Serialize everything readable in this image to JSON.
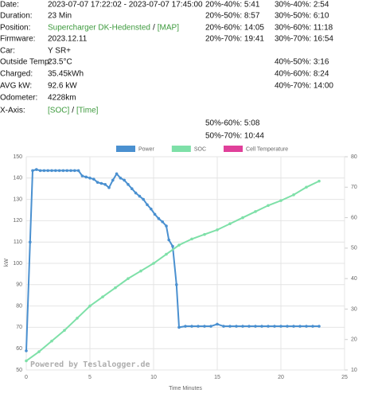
{
  "info": {
    "rows": [
      {
        "label": "Date:",
        "value": "2023-07-07 17:22:02 - 2023-07-07 17:45:00"
      },
      {
        "label": "Duration:",
        "value": "23 Min"
      },
      {
        "label": "Position:",
        "links": [
          "Supercharger DK-Hedensted",
          "[MAP]"
        ],
        "separator": "/"
      },
      {
        "label": "Firmware:",
        "value": "2023.12.11"
      },
      {
        "label": "Car:",
        "value": "Y SR+"
      },
      {
        "label": "Outside Temp:",
        "value": "23.5°C"
      },
      {
        "label": "Charged:",
        "value": "35.45kWh"
      },
      {
        "label": "AVG kW:",
        "value": "92.6 kW"
      },
      {
        "label": "Odometer:",
        "value": "4228km"
      },
      {
        "label": "X-Axis:",
        "links": [
          "[SOC]",
          "[Time]"
        ],
        "separator": "/"
      }
    ]
  },
  "stats": {
    "col_20": [
      "20%-40%: 5:41",
      "20%-50%: 8:57",
      "20%-60%: 14:05",
      "20%-70%: 19:41"
    ],
    "col_30": [
      "30%-40%: 2:54",
      "30%-50%: 6:10",
      "30%-60%: 11:18",
      "30%-70%: 16:54"
    ],
    "col_40": [
      "40%-50%: 3:16",
      "40%-60%: 8:24",
      "40%-70%: 14:00"
    ],
    "col_50": [
      "50%-60%: 5:08",
      "50%-70%: 10:44"
    ]
  },
  "chart_data": {
    "type": "line",
    "x_label": "Time Minutes",
    "y_label": "kW",
    "watermark": "Powered by Teslalogger.de",
    "xlim": [
      0,
      25
    ],
    "xticks": [
      0,
      5,
      10,
      15,
      20,
      25
    ],
    "ylim": [
      50,
      150
    ],
    "yticks": [
      50,
      60,
      70,
      80,
      90,
      100,
      110,
      120,
      130,
      140,
      150
    ],
    "y2lim": [
      10,
      80
    ],
    "y2ticks": [
      10,
      20,
      30,
      40,
      50,
      60,
      70,
      80
    ],
    "grid": true,
    "series": [
      {
        "name": "Power",
        "color": "#4a90d0",
        "x": [
          0,
          0.3,
          0.5,
          0.8,
          1.1,
          1.4,
          1.7,
          2,
          2.3,
          2.6,
          2.9,
          3.2,
          3.5,
          3.8,
          4.1,
          4.4,
          4.7,
          5,
          5.3,
          5.6,
          5.9,
          6.2,
          6.5,
          6.8,
          7.1,
          7.4,
          7.7,
          8,
          8.3,
          8.6,
          8.9,
          9.2,
          9.5,
          9.8,
          10.1,
          10.4,
          10.7,
          11,
          11.2,
          11.5,
          11.8,
          12,
          12.5,
          13,
          13.5,
          14,
          14.5,
          15,
          15.5,
          16,
          16.5,
          17,
          17.5,
          18,
          18.5,
          19,
          19.5,
          20,
          20.5,
          21,
          21.5,
          22,
          22.5,
          23
        ],
        "values": [
          59,
          110,
          143.5,
          144,
          143.5,
          143.5,
          143.5,
          143.5,
          143.5,
          143.5,
          143.5,
          143.5,
          143.5,
          143.5,
          143.5,
          141,
          140.5,
          140,
          139.5,
          138,
          137.5,
          137,
          135.5,
          139,
          142,
          140,
          139,
          137,
          135,
          133,
          131.5,
          130,
          127.5,
          125.5,
          123,
          121,
          119.5,
          117.5,
          111,
          108,
          90,
          70,
          70.5,
          70.5,
          70.5,
          70.5,
          70.5,
          71.5,
          70.5,
          70.5,
          70.5,
          70.5,
          70.5,
          70.5,
          70.5,
          70.5,
          70.5,
          70.5,
          70.5,
          70.5,
          70.5,
          70.5,
          70.5,
          70.5
        ]
      },
      {
        "name": "SOC",
        "color": "#7ee0a8",
        "axis": "y2",
        "x": [
          0,
          1,
          2,
          3,
          4,
          5,
          6,
          7,
          8,
          9,
          10,
          11,
          12,
          13,
          14,
          15,
          16,
          17,
          18,
          19,
          20,
          21,
          22,
          23
        ],
        "values": [
          13,
          16,
          19.5,
          23,
          27,
          31,
          34,
          37,
          40,
          42.5,
          45,
          48,
          51,
          53,
          54.5,
          56,
          58,
          60,
          62,
          64,
          65.6,
          67.5,
          70,
          72
        ]
      },
      {
        "name": "Cell Temperature",
        "color": "#e0409a",
        "values": []
      }
    ]
  }
}
